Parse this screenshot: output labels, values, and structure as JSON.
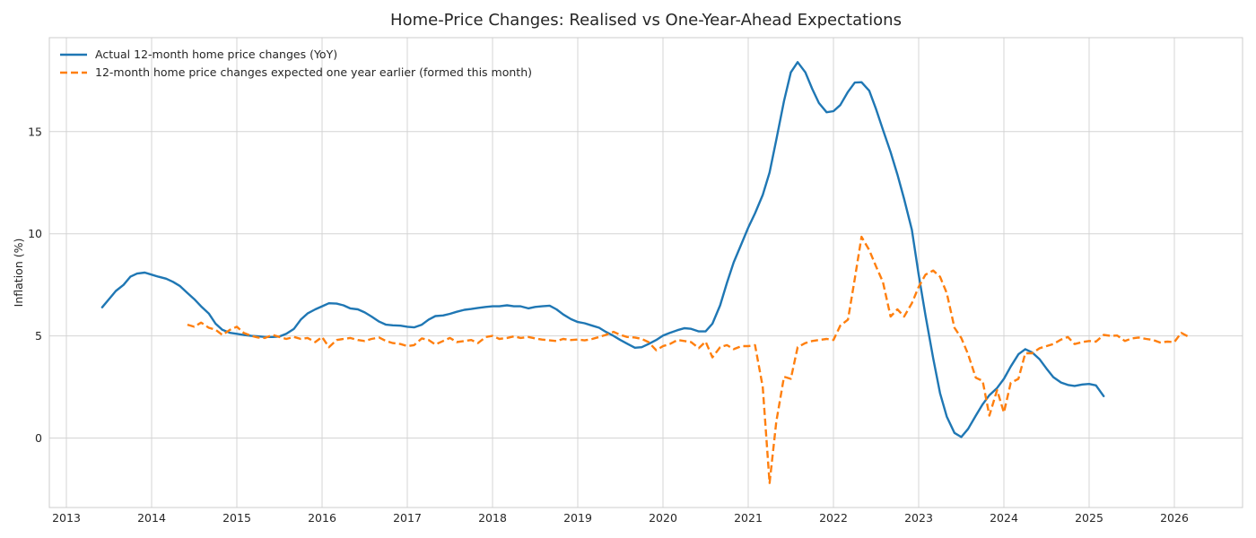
{
  "chart_data": {
    "type": "line",
    "title": "Home-Price Changes: Realised vs One-Year-Ahead Expectations",
    "xlabel": "",
    "ylabel": "Inflation (%)",
    "xlim": [
      2012.8,
      2026.8
    ],
    "ylim": [
      -3.4,
      19.6
    ],
    "x_ticks": [
      2013,
      2014,
      2015,
      2016,
      2017,
      2018,
      2019,
      2020,
      2021,
      2022,
      2023,
      2024,
      2025,
      2026
    ],
    "x_tick_labels": [
      "2013",
      "2014",
      "2015",
      "2016",
      "2017",
      "2018",
      "2019",
      "2020",
      "2021",
      "2022",
      "2023",
      "2024",
      "2025",
      "2026"
    ],
    "y_ticks": [
      0,
      5,
      10,
      15
    ],
    "y_tick_labels": [
      "0",
      "5",
      "10",
      "15"
    ],
    "grid": true,
    "legend_position": "top-left",
    "series": [
      {
        "name": "Actual 12-month home price changes (YoY)",
        "color": "#1f77b4",
        "style": "solid",
        "points": [
          [
            2013.42,
            6.4
          ],
          [
            2013.5,
            6.8
          ],
          [
            2013.58,
            7.2
          ],
          [
            2013.67,
            7.5
          ],
          [
            2013.75,
            7.9
          ],
          [
            2013.83,
            8.05
          ],
          [
            2013.92,
            8.1
          ],
          [
            2014.0,
            8.0
          ],
          [
            2014.08,
            7.9
          ],
          [
            2014.17,
            7.8
          ],
          [
            2014.25,
            7.65
          ],
          [
            2014.33,
            7.45
          ],
          [
            2014.42,
            7.1
          ],
          [
            2014.5,
            6.8
          ],
          [
            2014.58,
            6.45
          ],
          [
            2014.67,
            6.1
          ],
          [
            2014.75,
            5.6
          ],
          [
            2014.83,
            5.3
          ],
          [
            2014.92,
            5.15
          ],
          [
            2015.0,
            5.1
          ],
          [
            2015.08,
            5.05
          ],
          [
            2015.17,
            5.0
          ],
          [
            2015.25,
            4.98
          ],
          [
            2015.33,
            4.95
          ],
          [
            2015.42,
            4.95
          ],
          [
            2015.5,
            4.97
          ],
          [
            2015.58,
            5.1
          ],
          [
            2015.67,
            5.35
          ],
          [
            2015.75,
            5.8
          ],
          [
            2015.83,
            6.1
          ],
          [
            2015.92,
            6.3
          ],
          [
            2016.0,
            6.45
          ],
          [
            2016.08,
            6.6
          ],
          [
            2016.17,
            6.58
          ],
          [
            2016.25,
            6.5
          ],
          [
            2016.33,
            6.35
          ],
          [
            2016.42,
            6.3
          ],
          [
            2016.5,
            6.15
          ],
          [
            2016.58,
            5.95
          ],
          [
            2016.67,
            5.7
          ],
          [
            2016.75,
            5.55
          ],
          [
            2016.83,
            5.52
          ],
          [
            2016.92,
            5.5
          ],
          [
            2017.0,
            5.45
          ],
          [
            2017.08,
            5.42
          ],
          [
            2017.17,
            5.55
          ],
          [
            2017.25,
            5.8
          ],
          [
            2017.33,
            5.97
          ],
          [
            2017.42,
            6.0
          ],
          [
            2017.5,
            6.08
          ],
          [
            2017.58,
            6.18
          ],
          [
            2017.67,
            6.28
          ],
          [
            2017.75,
            6.32
          ],
          [
            2017.83,
            6.37
          ],
          [
            2017.92,
            6.42
          ],
          [
            2018.0,
            6.45
          ],
          [
            2018.08,
            6.45
          ],
          [
            2018.17,
            6.5
          ],
          [
            2018.25,
            6.45
          ],
          [
            2018.33,
            6.45
          ],
          [
            2018.42,
            6.35
          ],
          [
            2018.5,
            6.42
          ],
          [
            2018.58,
            6.45
          ],
          [
            2018.67,
            6.48
          ],
          [
            2018.75,
            6.3
          ],
          [
            2018.83,
            6.05
          ],
          [
            2018.92,
            5.82
          ],
          [
            2019.0,
            5.68
          ],
          [
            2019.08,
            5.62
          ],
          [
            2019.17,
            5.5
          ],
          [
            2019.25,
            5.4
          ],
          [
            2019.33,
            5.2
          ],
          [
            2019.42,
            5.0
          ],
          [
            2019.5,
            4.8
          ],
          [
            2019.58,
            4.62
          ],
          [
            2019.67,
            4.42
          ],
          [
            2019.75,
            4.45
          ],
          [
            2019.83,
            4.6
          ],
          [
            2019.92,
            4.8
          ],
          [
            2020.0,
            5.02
          ],
          [
            2020.08,
            5.15
          ],
          [
            2020.17,
            5.28
          ],
          [
            2020.25,
            5.38
          ],
          [
            2020.33,
            5.35
          ],
          [
            2020.42,
            5.22
          ],
          [
            2020.5,
            5.22
          ],
          [
            2020.58,
            5.6
          ],
          [
            2020.67,
            6.5
          ],
          [
            2020.75,
            7.6
          ],
          [
            2020.83,
            8.6
          ],
          [
            2020.92,
            9.5
          ],
          [
            2021.0,
            10.3
          ],
          [
            2021.08,
            11.0
          ],
          [
            2021.17,
            11.9
          ],
          [
            2021.25,
            13.0
          ],
          [
            2021.33,
            14.6
          ],
          [
            2021.42,
            16.5
          ],
          [
            2021.5,
            17.9
          ],
          [
            2021.58,
            18.4
          ],
          [
            2021.67,
            17.9
          ],
          [
            2021.75,
            17.1
          ],
          [
            2021.83,
            16.4
          ],
          [
            2021.92,
            15.95
          ],
          [
            2022.0,
            16.0
          ],
          [
            2022.08,
            16.3
          ],
          [
            2022.17,
            16.95
          ],
          [
            2022.25,
            17.4
          ],
          [
            2022.33,
            17.42
          ],
          [
            2022.42,
            17.0
          ],
          [
            2022.5,
            16.1
          ],
          [
            2022.58,
            15.1
          ],
          [
            2022.67,
            14.0
          ],
          [
            2022.75,
            12.9
          ],
          [
            2022.83,
            11.7
          ],
          [
            2022.92,
            10.2
          ],
          [
            2023.0,
            8.0
          ],
          [
            2023.08,
            6.0
          ],
          [
            2023.17,
            3.9
          ],
          [
            2023.25,
            2.2
          ],
          [
            2023.33,
            1.05
          ],
          [
            2023.42,
            0.25
          ],
          [
            2023.5,
            0.05
          ],
          [
            2023.58,
            0.45
          ],
          [
            2023.67,
            1.1
          ],
          [
            2023.75,
            1.65
          ],
          [
            2023.83,
            2.1
          ],
          [
            2023.92,
            2.45
          ],
          [
            2024.0,
            2.9
          ],
          [
            2024.08,
            3.5
          ],
          [
            2024.17,
            4.1
          ],
          [
            2024.25,
            4.35
          ],
          [
            2024.33,
            4.2
          ],
          [
            2024.42,
            3.85
          ],
          [
            2024.5,
            3.4
          ],
          [
            2024.58,
            2.98
          ],
          [
            2024.67,
            2.72
          ],
          [
            2024.75,
            2.6
          ],
          [
            2024.83,
            2.55
          ],
          [
            2024.92,
            2.62
          ],
          [
            2025.0,
            2.65
          ],
          [
            2025.08,
            2.58
          ],
          [
            2025.17,
            2.05
          ]
        ]
      },
      {
        "name": "12-month home price changes expected one year earlier (formed this month)",
        "color": "#ff7f0e",
        "style": "dashed",
        "points": [
          [
            2014.42,
            5.55
          ],
          [
            2014.5,
            5.45
          ],
          [
            2014.58,
            5.65
          ],
          [
            2014.67,
            5.4
          ],
          [
            2014.75,
            5.3
          ],
          [
            2014.83,
            5.05
          ],
          [
            2014.92,
            5.3
          ],
          [
            2015.0,
            5.45
          ],
          [
            2015.08,
            5.15
          ],
          [
            2015.17,
            5.0
          ],
          [
            2015.25,
            4.92
          ],
          [
            2015.33,
            4.9
          ],
          [
            2015.42,
            5.05
          ],
          [
            2015.5,
            4.95
          ],
          [
            2015.58,
            4.85
          ],
          [
            2015.67,
            4.95
          ],
          [
            2015.75,
            4.85
          ],
          [
            2015.83,
            4.9
          ],
          [
            2015.92,
            4.7
          ],
          [
            2016.0,
            4.95
          ],
          [
            2016.08,
            4.45
          ],
          [
            2016.17,
            4.8
          ],
          [
            2016.25,
            4.85
          ],
          [
            2016.33,
            4.9
          ],
          [
            2016.42,
            4.8
          ],
          [
            2016.5,
            4.75
          ],
          [
            2016.58,
            4.85
          ],
          [
            2016.67,
            4.92
          ],
          [
            2016.75,
            4.75
          ],
          [
            2016.83,
            4.65
          ],
          [
            2016.92,
            4.6
          ],
          [
            2017.0,
            4.5
          ],
          [
            2017.08,
            4.55
          ],
          [
            2017.17,
            4.88
          ],
          [
            2017.25,
            4.8
          ],
          [
            2017.33,
            4.58
          ],
          [
            2017.42,
            4.75
          ],
          [
            2017.5,
            4.9
          ],
          [
            2017.58,
            4.7
          ],
          [
            2017.67,
            4.75
          ],
          [
            2017.75,
            4.8
          ],
          [
            2017.83,
            4.65
          ],
          [
            2017.92,
            4.95
          ],
          [
            2018.0,
            5.0
          ],
          [
            2018.08,
            4.85
          ],
          [
            2018.17,
            4.9
          ],
          [
            2018.25,
            4.98
          ],
          [
            2018.33,
            4.9
          ],
          [
            2018.42,
            4.95
          ],
          [
            2018.5,
            4.88
          ],
          [
            2018.58,
            4.82
          ],
          [
            2018.67,
            4.78
          ],
          [
            2018.75,
            4.75
          ],
          [
            2018.83,
            4.85
          ],
          [
            2018.92,
            4.8
          ],
          [
            2019.0,
            4.82
          ],
          [
            2019.08,
            4.78
          ],
          [
            2019.17,
            4.85
          ],
          [
            2019.25,
            4.95
          ],
          [
            2019.33,
            5.05
          ],
          [
            2019.42,
            5.2
          ],
          [
            2019.5,
            5.05
          ],
          [
            2019.58,
            4.95
          ],
          [
            2019.67,
            4.92
          ],
          [
            2019.75,
            4.85
          ],
          [
            2019.83,
            4.7
          ],
          [
            2019.92,
            4.3
          ],
          [
            2020.0,
            4.5
          ],
          [
            2020.08,
            4.6
          ],
          [
            2020.17,
            4.8
          ],
          [
            2020.25,
            4.75
          ],
          [
            2020.33,
            4.7
          ],
          [
            2020.42,
            4.4
          ],
          [
            2020.5,
            4.72
          ],
          [
            2020.58,
            3.95
          ],
          [
            2020.67,
            4.45
          ],
          [
            2020.75,
            4.55
          ],
          [
            2020.83,
            4.35
          ],
          [
            2020.92,
            4.5
          ],
          [
            2021.0,
            4.5
          ],
          [
            2021.08,
            4.55
          ],
          [
            2021.17,
            2.5
          ],
          [
            2021.25,
            -2.2
          ],
          [
            2021.33,
            0.8
          ],
          [
            2021.42,
            3.0
          ],
          [
            2021.5,
            2.9
          ],
          [
            2021.58,
            4.45
          ],
          [
            2021.67,
            4.65
          ],
          [
            2021.75,
            4.75
          ],
          [
            2021.83,
            4.8
          ],
          [
            2021.92,
            4.85
          ],
          [
            2022.0,
            4.8
          ],
          [
            2022.08,
            5.5
          ],
          [
            2022.17,
            5.8
          ],
          [
            2022.25,
            7.8
          ],
          [
            2022.33,
            9.85
          ],
          [
            2022.42,
            9.2
          ],
          [
            2022.5,
            8.4
          ],
          [
            2022.58,
            7.65
          ],
          [
            2022.67,
            5.95
          ],
          [
            2022.75,
            6.3
          ],
          [
            2022.83,
            5.95
          ],
          [
            2022.92,
            6.6
          ],
          [
            2023.0,
            7.4
          ],
          [
            2023.08,
            8.0
          ],
          [
            2023.17,
            8.2
          ],
          [
            2023.25,
            7.9
          ],
          [
            2023.33,
            7.1
          ],
          [
            2023.42,
            5.4
          ],
          [
            2023.5,
            4.9
          ],
          [
            2023.58,
            4.1
          ],
          [
            2023.67,
            2.95
          ],
          [
            2023.75,
            2.8
          ],
          [
            2023.83,
            1.1
          ],
          [
            2023.92,
            2.35
          ],
          [
            2024.0,
            1.25
          ],
          [
            2024.08,
            2.7
          ],
          [
            2024.17,
            2.9
          ],
          [
            2024.25,
            4.15
          ],
          [
            2024.33,
            4.15
          ],
          [
            2024.42,
            4.4
          ],
          [
            2024.5,
            4.5
          ],
          [
            2024.58,
            4.6
          ],
          [
            2024.67,
            4.82
          ],
          [
            2024.75,
            4.95
          ],
          [
            2024.83,
            4.6
          ],
          [
            2024.92,
            4.7
          ],
          [
            2025.0,
            4.75
          ],
          [
            2025.08,
            4.72
          ],
          [
            2025.17,
            5.05
          ],
          [
            2025.25,
            5.0
          ],
          [
            2025.33,
            5.02
          ],
          [
            2025.42,
            4.75
          ],
          [
            2025.5,
            4.88
          ],
          [
            2025.58,
            4.92
          ],
          [
            2025.67,
            4.85
          ],
          [
            2025.75,
            4.8
          ],
          [
            2025.83,
            4.68
          ],
          [
            2025.92,
            4.72
          ],
          [
            2026.0,
            4.7
          ],
          [
            2026.08,
            5.15
          ],
          [
            2026.17,
            4.95
          ]
        ]
      }
    ]
  }
}
